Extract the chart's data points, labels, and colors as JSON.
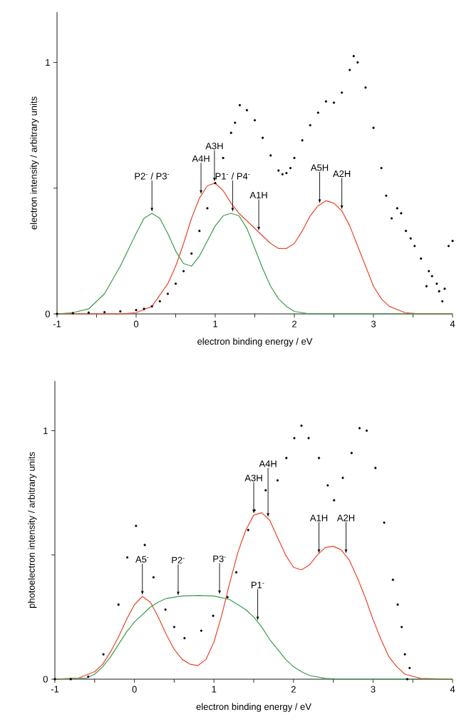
{
  "chart_data": [
    {
      "type": "line",
      "xlabel": "electron binding energy / eV",
      "ylabel": "electron intensity / arbitrary units",
      "xlim": [
        -1,
        4
      ],
      "ylim": [
        0,
        1.2
      ],
      "xticks": [
        -1,
        {
          "value": -0.5,
          "label": null
        },
        0,
        {
          "value": 0.5,
          "label": null
        },
        1,
        {
          "value": 1.5,
          "label": null
        },
        2,
        {
          "value": 2.5,
          "label": null
        },
        3,
        {
          "value": 3.5,
          "label": null
        },
        4
      ],
      "yticks": [
        0,
        {
          "value": 0.5,
          "label": null
        },
        1
      ],
      "series": [
        {
          "type": "scatter",
          "marker": "circle",
          "color": "#000000",
          "x": [
            -1,
            -0.8,
            -0.6,
            -0.4,
            -0.2,
            0,
            0.1,
            0.2,
            0.3,
            0.4,
            0.5,
            0.6,
            0.7,
            0.8,
            0.9,
            1.0,
            1.1,
            1.2,
            1.25,
            1.31,
            1.4,
            1.5,
            1.6,
            1.7,
            1.8,
            1.85,
            1.9,
            1.95,
            2.0,
            2.1,
            2.2,
            2.3,
            2.4,
            2.5,
            2.6,
            2.7,
            2.75,
            2.8,
            2.9,
            3.0,
            3.1,
            3.16,
            3.23,
            3.3,
            3.35,
            3.41,
            3.47,
            3.52,
            3.6,
            3.67,
            3.7,
            3.74,
            3.8,
            3.83,
            3.87,
            3.9,
            3.95,
            4.0
          ],
          "values": [
            0,
            0.003,
            0.005,
            0.007,
            0.01,
            0.015,
            0.02,
            0.03,
            0.05,
            0.08,
            0.12,
            0.17,
            0.24,
            0.33,
            0.42,
            0.52,
            0.62,
            0.72,
            0.76,
            0.83,
            0.81,
            0.77,
            0.7,
            0.63,
            0.57,
            0.555,
            0.56,
            0.58,
            0.62,
            0.69,
            0.75,
            0.8,
            0.845,
            0.84,
            0.88,
            0.97,
            1.025,
            1.0,
            0.9,
            0.74,
            0.58,
            0.47,
            0.38,
            0.42,
            0.4,
            0.33,
            0.3,
            0.27,
            0.22,
            0.11,
            0.17,
            0.15,
            0.12,
            0.09,
            0.05,
            0.1,
            0.27,
            0.29
          ]
        },
        {
          "type": "line",
          "color": "#e8462a",
          "x": [
            -1,
            -0.2,
            0,
            0.2,
            0.4,
            0.5,
            0.6,
            0.7,
            0.8,
            0.9,
            1.0,
            1.1,
            1.2,
            1.3,
            1.4,
            1.5,
            1.6,
            1.7,
            1.8,
            1.9,
            2.0,
            2.1,
            2.2,
            2.3,
            2.4,
            2.5,
            2.6,
            2.7,
            2.8,
            2.9,
            3.0,
            3.1,
            3.2,
            3.4,
            3.6,
            4.0
          ],
          "values": [
            0,
            0,
            0.005,
            0.03,
            0.12,
            0.19,
            0.28,
            0.38,
            0.46,
            0.51,
            0.52,
            0.49,
            0.44,
            0.4,
            0.37,
            0.34,
            0.31,
            0.28,
            0.26,
            0.26,
            0.28,
            0.33,
            0.39,
            0.43,
            0.45,
            0.44,
            0.41,
            0.35,
            0.27,
            0.19,
            0.11,
            0.06,
            0.03,
            0.005,
            0,
            0
          ]
        },
        {
          "type": "line",
          "color": "#3a9a4a",
          "x": [
            -1,
            -0.8,
            -0.6,
            -0.4,
            -0.2,
            0,
            0.1,
            0.2,
            0.3,
            0.4,
            0.5,
            0.6,
            0.7,
            0.8,
            0.9,
            1.0,
            1.1,
            1.2,
            1.3,
            1.4,
            1.5,
            1.6,
            1.7,
            1.8,
            1.9,
            2.0,
            2.2,
            4.0
          ],
          "values": [
            0,
            0.005,
            0.02,
            0.08,
            0.19,
            0.32,
            0.38,
            0.4,
            0.38,
            0.32,
            0.25,
            0.2,
            0.19,
            0.23,
            0.29,
            0.35,
            0.39,
            0.4,
            0.39,
            0.34,
            0.26,
            0.18,
            0.11,
            0.06,
            0.03,
            0.01,
            0,
            0
          ]
        }
      ],
      "annotations": [
        {
          "text": "P2$^{-}$ / P3$^{-}$",
          "x": 0.2,
          "y": 0.4
        },
        {
          "text": "A4H",
          "x": 0.82,
          "y": 0.47
        },
        {
          "text": "A3H",
          "x": 0.99,
          "y": 0.52
        },
        {
          "text": "P1$^{-}$ / P4$^{-}$",
          "x": 1.22,
          "y": 0.4
        },
        {
          "text": "A1H",
          "x": 1.55,
          "y": 0.325
        },
        {
          "text": "A5H",
          "x": 2.32,
          "y": 0.434
        },
        {
          "text": "A2H",
          "x": 2.6,
          "y": 0.41
        }
      ]
    },
    {
      "type": "line",
      "xlabel": "electron binding energy / eV",
      "ylabel": "photoelectron intensity / arbitrary units",
      "xlim": [
        -1,
        4
      ],
      "ylim": [
        0,
        1.2
      ],
      "xticks": [
        -1,
        {
          "value": -0.5,
          "label": null
        },
        0,
        {
          "value": 0.5,
          "label": null
        },
        1,
        {
          "value": 1.5,
          "label": null
        },
        2,
        {
          "value": 2.5,
          "label": null
        },
        3,
        {
          "value": 3.5,
          "label": null
        },
        4
      ],
      "yticks": [
        0,
        {
          "value": 0.5,
          "label": null
        },
        1
      ],
      "series": [
        {
          "type": "scatter",
          "marker": "circle",
          "color": "#000000",
          "x": [
            -1,
            -0.8,
            -0.58,
            -0.39,
            -0.2,
            -0.09,
            0.02,
            0.13,
            0.24,
            0.39,
            0.5,
            0.63,
            0.84,
            0.99,
            1.17,
            1.28,
            1.43,
            1.51,
            1.65,
            1.8,
            1.91,
            2.01,
            2.1,
            2.19,
            2.32,
            2.43,
            2.51,
            2.62,
            2.73,
            2.83,
            2.92,
            3.03,
            3.14,
            3.25,
            3.31,
            3.36,
            3.4,
            3.43,
            3.46
          ],
          "values": [
            0,
            0,
            0.01,
            0.1,
            0.3,
            0.49,
            0.617,
            0.54,
            0.41,
            0.28,
            0.21,
            0.165,
            0.195,
            0.255,
            0.33,
            0.43,
            0.6,
            0.68,
            0.76,
            0.8,
            0.89,
            0.97,
            1.02,
            0.97,
            0.89,
            0.78,
            0.72,
            0.81,
            0.91,
            1.01,
            1.0,
            0.85,
            0.63,
            0.4,
            0.3,
            0.21,
            0.1,
            0,
            0.045
          ]
        },
        {
          "type": "line",
          "color": "#e8462a",
          "x": [
            -1,
            -0.7,
            -0.5,
            -0.4,
            -0.3,
            -0.2,
            -0.1,
            0,
            0.1,
            0.2,
            0.3,
            0.4,
            0.5,
            0.6,
            0.7,
            0.8,
            0.9,
            1.0,
            1.1,
            1.2,
            1.3,
            1.4,
            1.5,
            1.6,
            1.7,
            1.8,
            1.9,
            2.0,
            2.1,
            2.2,
            2.3,
            2.4,
            2.5,
            2.6,
            2.7,
            2.8,
            2.9,
            3.0,
            3.1,
            3.2,
            3.3,
            3.4,
            3.6,
            4.0
          ],
          "values": [
            0,
            0.005,
            0.03,
            0.06,
            0.11,
            0.17,
            0.24,
            0.3,
            0.333,
            0.31,
            0.25,
            0.18,
            0.12,
            0.08,
            0.06,
            0.055,
            0.08,
            0.15,
            0.26,
            0.39,
            0.51,
            0.6,
            0.66,
            0.67,
            0.64,
            0.57,
            0.5,
            0.45,
            0.44,
            0.46,
            0.5,
            0.53,
            0.535,
            0.52,
            0.48,
            0.41,
            0.33,
            0.24,
            0.16,
            0.09,
            0.05,
            0.02,
            0.003,
            0
          ]
        },
        {
          "type": "line",
          "color": "#3a9a4a",
          "x": [
            -1,
            -0.6,
            -0.5,
            -0.4,
            -0.3,
            -0.2,
            -0.1,
            0,
            0.1,
            0.2,
            0.3,
            0.4,
            0.6,
            0.8,
            1.0,
            1.2,
            1.3,
            1.4,
            1.5,
            1.6,
            1.7,
            1.8,
            1.9,
            2.0,
            2.1,
            2.2,
            2.4,
            2.6,
            4.0
          ],
          "values": [
            0,
            0.005,
            0.02,
            0.05,
            0.09,
            0.14,
            0.19,
            0.23,
            0.26,
            0.29,
            0.31,
            0.325,
            0.335,
            0.337,
            0.335,
            0.32,
            0.3,
            0.28,
            0.25,
            0.21,
            0.16,
            0.12,
            0.08,
            0.05,
            0.03,
            0.015,
            0.003,
            0,
            0
          ]
        }
      ],
      "annotations": [
        {
          "text": "A5$^{-}$",
          "x": 0.1,
          "y": 0.333
        },
        {
          "text": "P2$^{-}$",
          "x": 0.55,
          "y": 0.33
        },
        {
          "text": "P3$^{-}$",
          "x": 1.07,
          "y": 0.335
        },
        {
          "text": "P1$^{-}$",
          "x": 1.55,
          "y": 0.23
        },
        {
          "text": "A3H",
          "x": 1.5,
          "y": 0.66
        },
        {
          "text": "A4H",
          "x": 1.68,
          "y": 0.646
        },
        {
          "text": "A1H",
          "x": 2.32,
          "y": 0.5
        },
        {
          "text": "A2H",
          "x": 2.66,
          "y": 0.5
        }
      ]
    }
  ]
}
